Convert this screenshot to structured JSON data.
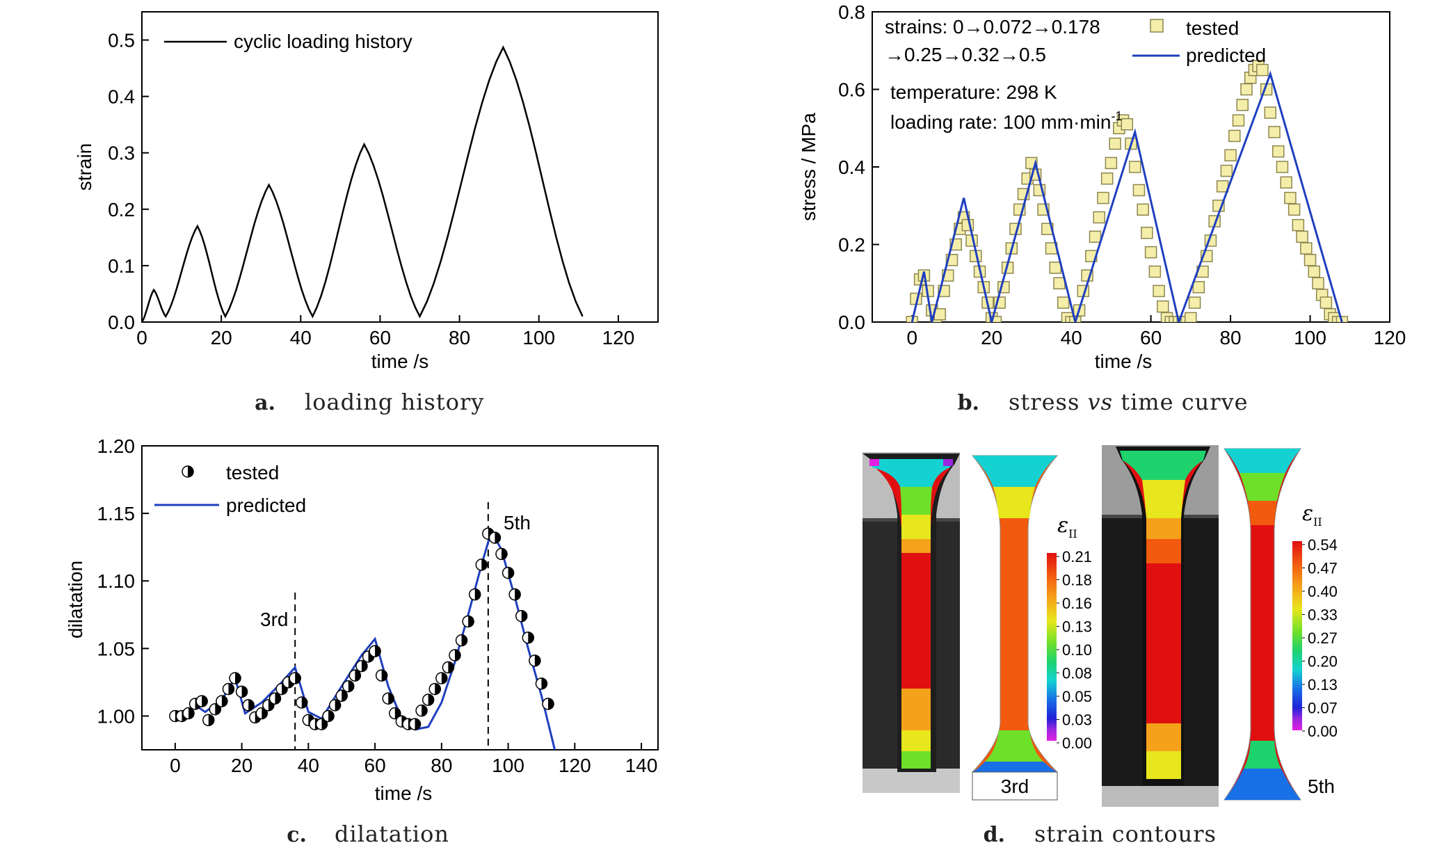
{
  "chart_data": [
    {
      "id": "a",
      "type": "line",
      "caption_letter": "a.",
      "caption": "loading history",
      "xlabel": "time /s",
      "ylabel": "strain",
      "xlim": [
        0,
        130
      ],
      "ylim": [
        0,
        0.55
      ],
      "xticks": [
        0,
        20,
        40,
        60,
        80,
        100,
        120
      ],
      "xticklabels": [
        "0",
        "20",
        "40",
        "60",
        "80",
        "100",
        "120"
      ],
      "yticks": [
        0.0,
        0.1,
        0.2,
        0.3,
        0.4,
        0.5
      ],
      "yticklabels": [
        "0.0",
        "0.1",
        "0.2",
        "0.3",
        "0.4",
        "0.5"
      ],
      "legend": {
        "label": "cyclic loading history",
        "position": "top-left"
      },
      "series": [
        {
          "name": "cyclic loading history",
          "color": "#000000",
          "x": [
            0,
            3,
            6,
            14,
            21,
            32,
            43,
            56,
            70,
            91,
            111
          ],
          "y": [
            0.0,
            0.057,
            0.01,
            0.17,
            0.01,
            0.243,
            0.01,
            0.315,
            0.01,
            0.487,
            0.01
          ]
        }
      ]
    },
    {
      "id": "b",
      "type": "scatter",
      "caption_letter": "b.",
      "caption_parts": [
        "stress ",
        "vs",
        " time curve"
      ],
      "xlabel": "time /s",
      "ylabel": "stress / MPa",
      "xlim": [
        -10,
        120
      ],
      "ylim": [
        0,
        0.8
      ],
      "xticks": [
        0,
        20,
        40,
        60,
        80,
        100,
        120
      ],
      "xticklabels": [
        "0",
        "20",
        "40",
        "60",
        "80",
        "100",
        "120"
      ],
      "yticks": [
        0.0,
        0.2,
        0.4,
        0.6,
        0.8
      ],
      "yticklabels": [
        "0.0",
        "0.2",
        "0.4",
        "0.6",
        "0.8"
      ],
      "annotations": [
        "strains: 0→0.072→0.178",
        "→0.25→0.32→0.5",
        "temperature: 298 K",
        "loading rate: 100 mm·min"
      ],
      "annotation_superscript": "-1",
      "legend": {
        "position": "top-right",
        "tested": "tested",
        "predicted": "predicted"
      },
      "series": [
        {
          "name": "tested",
          "marker": "square",
          "fill": "#f4eeaa",
          "stroke": "#8c8650",
          "x": [
            0,
            1,
            2,
            3,
            4,
            5,
            6,
            7,
            8,
            9,
            10,
            11,
            12,
            13,
            14,
            15,
            16,
            17,
            18,
            19,
            20,
            21,
            22,
            23,
            24,
            25,
            26,
            27,
            28,
            29,
            30,
            31,
            32,
            33,
            34,
            35,
            36,
            37,
            38,
            39,
            40,
            41,
            42,
            43,
            44,
            45,
            46,
            47,
            48,
            49,
            50,
            51,
            52,
            53,
            54,
            55,
            56,
            57,
            58,
            59,
            60,
            61,
            62,
            63,
            64,
            65,
            66,
            67,
            68,
            69,
            70,
            71,
            72,
            73,
            74,
            75,
            76,
            77,
            78,
            79,
            80,
            81,
            82,
            83,
            84,
            85,
            86,
            87,
            88,
            89,
            90,
            91,
            92,
            93,
            94,
            95,
            96,
            97,
            98,
            99,
            100,
            101,
            102,
            103,
            104,
            105,
            106,
            107,
            108
          ],
          "y": [
            0.0,
            0.06,
            0.11,
            0.12,
            0.08,
            0.03,
            0.0,
            0.02,
            0.08,
            0.12,
            0.16,
            0.2,
            0.24,
            0.27,
            0.25,
            0.21,
            0.17,
            0.13,
            0.09,
            0.05,
            0.01,
            0.0,
            0.05,
            0.09,
            0.14,
            0.19,
            0.24,
            0.29,
            0.33,
            0.37,
            0.41,
            0.38,
            0.34,
            0.29,
            0.24,
            0.19,
            0.14,
            0.1,
            0.05,
            0.01,
            0.0,
            0.0,
            0.03,
            0.08,
            0.12,
            0.17,
            0.22,
            0.27,
            0.32,
            0.37,
            0.41,
            0.46,
            0.5,
            0.52,
            0.51,
            0.46,
            0.4,
            0.34,
            0.29,
            0.23,
            0.18,
            0.13,
            0.08,
            0.04,
            0.01,
            0.0,
            0.0,
            0.0,
            0.0,
            0.0,
            0.01,
            0.05,
            0.09,
            0.13,
            0.17,
            0.21,
            0.26,
            0.3,
            0.35,
            0.39,
            0.43,
            0.48,
            0.52,
            0.56,
            0.6,
            0.63,
            0.65,
            0.66,
            0.65,
            0.6,
            0.54,
            0.49,
            0.44,
            0.4,
            0.36,
            0.32,
            0.29,
            0.25,
            0.22,
            0.19,
            0.16,
            0.13,
            0.1,
            0.07,
            0.05,
            0.02,
            0.01,
            0.0,
            0.0
          ]
        },
        {
          "name": "predicted",
          "color": "#1f3fbf",
          "x": [
            0,
            3,
            5,
            13,
            20,
            31,
            41,
            56,
            67,
            90,
            108
          ],
          "y": [
            0.0,
            0.13,
            0.0,
            0.32,
            0.0,
            0.41,
            0.0,
            0.49,
            0.0,
            0.64,
            0.0
          ]
        }
      ]
    },
    {
      "id": "c",
      "type": "scatter",
      "caption_letter": "c.",
      "caption": "dilatation",
      "xlabel": "time /s",
      "ylabel": "dilatation",
      "xlim": [
        -10,
        145
      ],
      "ylim": [
        0.975,
        1.2
      ],
      "xticks": [
        0,
        20,
        40,
        60,
        80,
        100,
        120,
        140
      ],
      "xticklabels": [
        "0",
        "20",
        "40",
        "60",
        "80",
        "100",
        "120",
        "140"
      ],
      "yticks": [
        1.0,
        1.05,
        1.1,
        1.15,
        1.2
      ],
      "yticklabels": [
        "1.00",
        "1.05",
        "1.10",
        "1.15",
        "1.20"
      ],
      "legend": {
        "position": "top-left",
        "tested": "tested",
        "predicted": "predicted"
      },
      "vlines": [
        {
          "x": 36,
          "label": "3rd"
        },
        {
          "x": 94,
          "label": "5th"
        }
      ],
      "series": [
        {
          "name": "tested",
          "marker": "half-filled-circle",
          "x": [
            0,
            2,
            4,
            6,
            8,
            10,
            12,
            14,
            16,
            18,
            20,
            22,
            24,
            26,
            28,
            30,
            32,
            34,
            36,
            38,
            40,
            42,
            44,
            46,
            48,
            50,
            52,
            54,
            56,
            58,
            60,
            62,
            64,
            66,
            68,
            70,
            72,
            74,
            76,
            78,
            80,
            82,
            84,
            86,
            88,
            90,
            92,
            94,
            96,
            98,
            100,
            102,
            104,
            106,
            108,
            110,
            112
          ],
          "y": [
            1.0,
            1.0,
            1.002,
            1.009,
            1.011,
            0.997,
            1.005,
            1.011,
            1.02,
            1.028,
            1.018,
            1.008,
            0.999,
            1.002,
            1.008,
            1.013,
            1.02,
            1.025,
            1.028,
            1.01,
            0.997,
            0.994,
            0.994,
            1.0,
            1.008,
            1.015,
            1.022,
            1.03,
            1.037,
            1.044,
            1.048,
            1.03,
            1.013,
            1.002,
            0.996,
            0.994,
            0.994,
            1.004,
            1.012,
            1.02,
            1.028,
            1.036,
            1.045,
            1.056,
            1.07,
            1.09,
            1.112,
            1.135,
            1.132,
            1.12,
            1.106,
            1.09,
            1.074,
            1.058,
            1.041,
            1.024,
            1.009
          ]
        },
        {
          "name": "predicted",
          "color": "#1f3fbf",
          "x": [
            0,
            3,
            6,
            9,
            14,
            18,
            21,
            26,
            32,
            36,
            40,
            44,
            50,
            56,
            60,
            64,
            68,
            72,
            76,
            80,
            84,
            88,
            92,
            95,
            98,
            102,
            106,
            110,
            114
          ],
          "y": [
            1.0,
            1.002,
            1.008,
            1.003,
            1.012,
            1.028,
            1.002,
            1.01,
            1.025,
            1.036,
            1.003,
            0.998,
            1.022,
            1.045,
            1.057,
            1.022,
            0.998,
            0.99,
            0.992,
            1.01,
            1.04,
            1.075,
            1.112,
            1.137,
            1.123,
            1.088,
            1.05,
            1.015,
            0.975
          ]
        }
      ]
    },
    {
      "id": "d",
      "type": "other",
      "caption_letter": "d.",
      "caption": "strain contours",
      "symbol": "ε",
      "symbol_sub": "II",
      "panels": [
        {
          "label": "3rd",
          "scale": [
            "0.21",
            "0.18",
            "0.16",
            "0.13",
            "0.10",
            "0.08",
            "0.05",
            "0.03",
            "0.00"
          ]
        },
        {
          "label": "5th",
          "scale": [
            "0.54",
            "0.47",
            "0.40",
            "0.33",
            "0.27",
            "0.20",
            "0.13",
            "0.07",
            "0.00"
          ]
        }
      ],
      "colormap": [
        "#e01010",
        "#f25a10",
        "#f5a21a",
        "#e8e61c",
        "#6ee02a",
        "#1ed26e",
        "#14d2d2",
        "#1870e6",
        "#2020d8",
        "#9a28e0",
        "#e020e0"
      ]
    }
  ]
}
